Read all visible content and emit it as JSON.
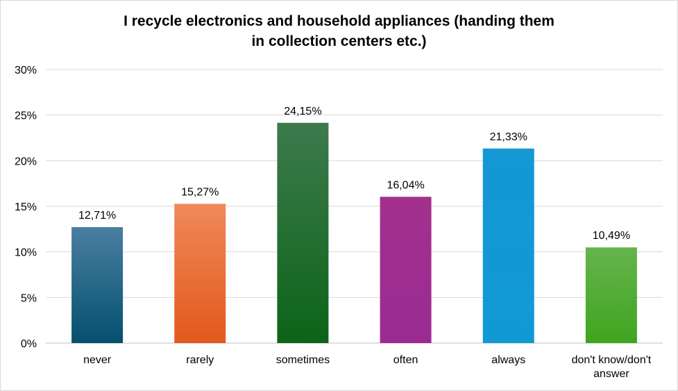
{
  "chart_data": {
    "type": "bar",
    "title_lines": [
      "I recycle electronics and household appliances (handing them",
      "in collection centers etc.)"
    ],
    "categories": [
      [
        "never"
      ],
      [
        "rarely"
      ],
      [
        "sometimes"
      ],
      [
        "often"
      ],
      [
        "always"
      ],
      [
        "don't know/don't",
        "answer"
      ]
    ],
    "values": [
      12.71,
      15.27,
      24.15,
      16.04,
      21.33,
      10.49
    ],
    "data_labels": [
      "12,71%",
      "15,27%",
      "24,15%",
      "16,04%",
      "21,33%",
      "10,49%"
    ],
    "ylim": [
      0,
      30
    ],
    "yticks": [
      "0%",
      "5%",
      "10%",
      "15%",
      "20%",
      "25%",
      "30%"
    ],
    "grid": true,
    "colors": [
      [
        "#4a7ea2",
        "#04506e"
      ],
      [
        "#f0895a",
        "#e2591b"
      ],
      [
        "#3d7a4d",
        "#0c6418"
      ],
      [
        "#a2308c",
        "#9b2b92"
      ],
      [
        "#1598d4",
        "#109ad4"
      ],
      [
        "#66b44e",
        "#3ea51e"
      ]
    ]
  }
}
